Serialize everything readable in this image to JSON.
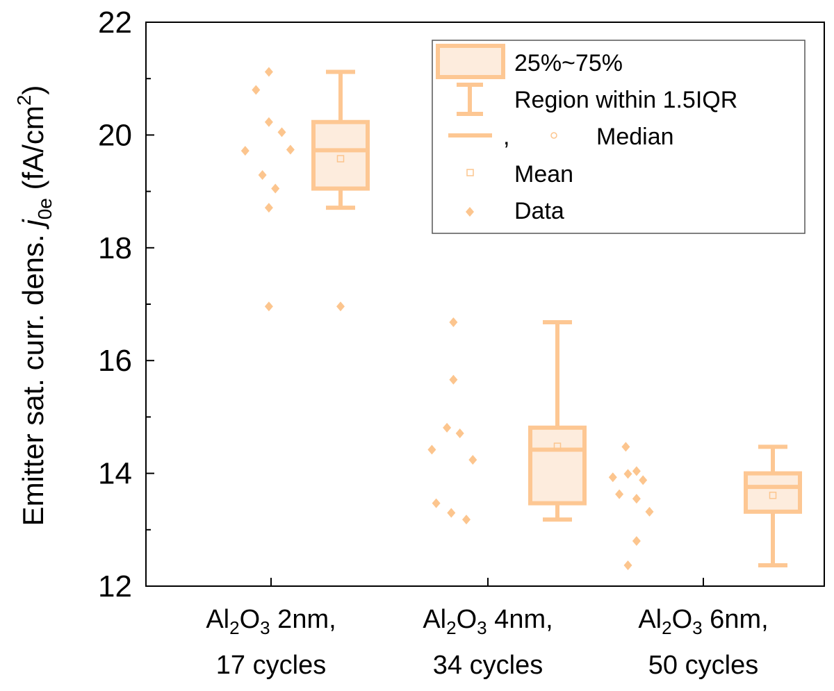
{
  "chart_data": {
    "type": "box",
    "ylim": [
      12,
      22
    ],
    "yticks": [
      12,
      14,
      16,
      18,
      20,
      22
    ],
    "ylabel": {
      "main": "Emitter sat. curr. dens. ",
      "symbol": "j",
      "symbol_sub": "0e",
      "unit_pre": " (fA/cm",
      "unit_sup": "2",
      "unit_post": ")"
    },
    "categories": [
      {
        "line1_pre": "Al",
        "sub1": "2",
        "mid": "O",
        "sub2": "3",
        "line1_post": " 2nm,",
        "line2": "17 cycles"
      },
      {
        "line1_pre": "Al",
        "sub1": "2",
        "mid": "O",
        "sub2": "3",
        "line1_post": " 4nm,",
        "line2": "34 cycles"
      },
      {
        "line1_pre": "Al",
        "sub1": "2",
        "mid": "O",
        "sub2": "3",
        "line1_post": " 6nm,",
        "line2": "50 cycles"
      }
    ],
    "boxes": [
      {
        "q1": 19.05,
        "median": 19.73,
        "q3": 20.23,
        "mean": 19.58,
        "whisker_low": 18.71,
        "whisker_high": 21.12
      },
      {
        "q1": 13.47,
        "median": 14.42,
        "q3": 14.81,
        "mean": 14.48,
        "whisker_low": 13.18,
        "whisker_high": 16.68
      },
      {
        "q1": 13.32,
        "median": 13.76,
        "q3": 14.0,
        "mean": 13.61,
        "whisker_low": 12.37,
        "whisker_high": 14.47
      }
    ],
    "outliers": [
      [
        16.96
      ],
      [],
      []
    ],
    "data_points": [
      [
        {
          "x": -0.12,
          "y": 19.72
        },
        {
          "x": -0.07,
          "y": 20.8
        },
        {
          "x": -0.04,
          "y": 19.29
        },
        {
          "x": -0.01,
          "y": 18.71
        },
        {
          "x": -0.01,
          "y": 16.96
        },
        {
          "x": -0.01,
          "y": 21.12
        },
        {
          "x": -0.01,
          "y": 20.23
        },
        {
          "x": 0.02,
          "y": 19.05
        },
        {
          "x": 0.05,
          "y": 20.05
        },
        {
          "x": 0.09,
          "y": 19.74
        }
      ],
      [
        {
          "x": -0.26,
          "y": 14.42
        },
        {
          "x": -0.24,
          "y": 13.47
        },
        {
          "x": -0.19,
          "y": 14.81
        },
        {
          "x": -0.17,
          "y": 13.3
        },
        {
          "x": -0.16,
          "y": 16.68
        },
        {
          "x": -0.16,
          "y": 15.66
        },
        {
          "x": -0.13,
          "y": 14.71
        },
        {
          "x": -0.1,
          "y": 13.18
        },
        {
          "x": -0.07,
          "y": 14.24
        }
      ],
      [
        {
          "x": -0.42,
          "y": 13.93
        },
        {
          "x": -0.39,
          "y": 13.63
        },
        {
          "x": -0.36,
          "y": 14.47
        },
        {
          "x": -0.35,
          "y": 12.37
        },
        {
          "x": -0.35,
          "y": 13.99
        },
        {
          "x": -0.31,
          "y": 14.04
        },
        {
          "x": -0.31,
          "y": 13.55
        },
        {
          "x": -0.31,
          "y": 12.8
        },
        {
          "x": -0.28,
          "y": 13.88
        },
        {
          "x": -0.25,
          "y": 13.32
        }
      ]
    ],
    "legend": {
      "placement": "top-right",
      "items": {
        "box": "25%~75%",
        "whisker": "Region within 1.5IQR",
        "median_sep": ",",
        "median": "Median",
        "mean": "Mean",
        "data": "Data"
      }
    },
    "colors": {
      "stroke": "#fdc793",
      "fill": "#fdecdd",
      "marker": "#fcc58e",
      "axis": "#000000"
    }
  }
}
